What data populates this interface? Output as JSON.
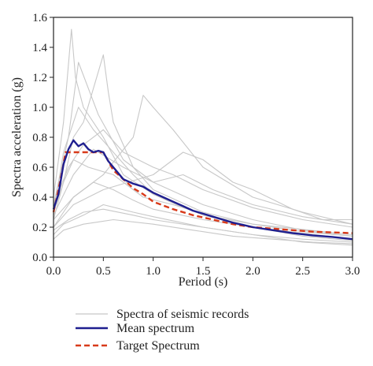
{
  "chart_data": {
    "type": "line",
    "xlabel": "Period (s)",
    "ylabel": "Spectra acceleration (g)",
    "xlim": [
      0,
      3.0
    ],
    "ylim": [
      0,
      1.6
    ],
    "xticks": [
      "0.0",
      "0.5",
      "1.0",
      "1.5",
      "2.0",
      "2.5",
      "3.0"
    ],
    "yticks": [
      "0.0",
      "0.2",
      "0.4",
      "0.6",
      "0.8",
      "1.0",
      "1.2",
      "1.4",
      "1.6"
    ],
    "grid": false,
    "legend_position": "bottom-left",
    "legend": [
      {
        "label": "Spectra of seismic records",
        "style": "solid-thin",
        "color": "#c8c8c8"
      },
      {
        "label": "Mean spectrum",
        "style": "solid-thick",
        "color": "#1f1f8f"
      },
      {
        "label": "Target Spectrum",
        "style": "dashed",
        "color": "#d83a1a"
      }
    ],
    "series": [
      {
        "name": "Mean spectrum",
        "color": "#1f1f8f",
        "x": [
          0.0,
          0.05,
          0.1,
          0.15,
          0.2,
          0.25,
          0.3,
          0.35,
          0.4,
          0.45,
          0.5,
          0.55,
          0.6,
          0.7,
          0.8,
          0.9,
          1.0,
          1.1,
          1.2,
          1.3,
          1.4,
          1.5,
          1.6,
          1.7,
          1.8,
          1.9,
          2.0,
          2.2,
          2.4,
          2.6,
          2.8,
          3.0
        ],
        "y": [
          0.32,
          0.42,
          0.62,
          0.72,
          0.78,
          0.74,
          0.76,
          0.72,
          0.7,
          0.71,
          0.7,
          0.64,
          0.6,
          0.52,
          0.49,
          0.47,
          0.43,
          0.4,
          0.37,
          0.34,
          0.31,
          0.29,
          0.27,
          0.25,
          0.23,
          0.215,
          0.2,
          0.18,
          0.16,
          0.145,
          0.135,
          0.12
        ]
      },
      {
        "name": "Target Spectrum",
        "color": "#d83a1a",
        "x": [
          0.0,
          0.05,
          0.1,
          0.12,
          0.2,
          0.3,
          0.4,
          0.5,
          0.6,
          0.7,
          0.8,
          0.9,
          1.0,
          1.2,
          1.4,
          1.6,
          1.8,
          2.0,
          2.2,
          2.4,
          2.6,
          2.8,
          3.0
        ],
        "y": [
          0.3,
          0.45,
          0.62,
          0.7,
          0.7,
          0.7,
          0.7,
          0.7,
          0.58,
          0.52,
          0.46,
          0.42,
          0.37,
          0.32,
          0.28,
          0.25,
          0.22,
          0.2,
          0.19,
          0.18,
          0.17,
          0.165,
          0.16
        ]
      },
      {
        "color": "#c8c8c8",
        "x": [
          0.0,
          0.1,
          0.18,
          0.22,
          0.3,
          0.5,
          0.7,
          1.0,
          1.5,
          2.0,
          2.5,
          3.0
        ],
        "y": [
          0.4,
          0.9,
          1.52,
          1.2,
          1.0,
          0.8,
          0.55,
          0.42,
          0.28,
          0.2,
          0.15,
          0.12
        ]
      },
      {
        "color": "#c8c8c8",
        "x": [
          0.0,
          0.1,
          0.2,
          0.3,
          0.5,
          0.55,
          0.6,
          0.8,
          1.0,
          1.5,
          2.0,
          3.0
        ],
        "y": [
          0.3,
          0.5,
          0.8,
          0.9,
          1.35,
          1.1,
          0.9,
          0.6,
          0.45,
          0.3,
          0.22,
          0.15
        ]
      },
      {
        "color": "#c8c8c8",
        "x": [
          0.0,
          0.2,
          0.5,
          0.8,
          0.9,
          1.0,
          1.2,
          1.5,
          2.0,
          2.5,
          3.0
        ],
        "y": [
          0.25,
          0.4,
          0.55,
          0.8,
          1.08,
          1.0,
          0.85,
          0.6,
          0.4,
          0.3,
          0.22
        ]
      },
      {
        "color": "#c8c8c8",
        "x": [
          0.0,
          0.2,
          0.5,
          1.0,
          1.3,
          1.5,
          1.8,
          2.0,
          2.4,
          2.7,
          3.0
        ],
        "y": [
          0.2,
          0.35,
          0.45,
          0.55,
          0.7,
          0.65,
          0.5,
          0.45,
          0.32,
          0.25,
          0.25
        ]
      },
      {
        "color": "#c8c8c8",
        "x": [
          0.0,
          0.1,
          0.25,
          0.4,
          0.6,
          0.8,
          1.0,
          1.3,
          1.6,
          2.0,
          2.5,
          3.0
        ],
        "y": [
          0.3,
          0.7,
          1.0,
          0.85,
          0.7,
          0.55,
          0.42,
          0.33,
          0.27,
          0.2,
          0.14,
          0.11
        ]
      },
      {
        "color": "#c8c8c8",
        "x": [
          0.0,
          0.1,
          0.2,
          0.4,
          0.6,
          0.8,
          1.0,
          1.5,
          2.0,
          2.5,
          3.0
        ],
        "y": [
          0.2,
          0.3,
          0.4,
          0.5,
          0.45,
          0.38,
          0.32,
          0.25,
          0.2,
          0.16,
          0.12
        ]
      },
      {
        "color": "#c8c8c8",
        "x": [
          0.0,
          0.15,
          0.3,
          0.5,
          0.8,
          1.0,
          1.5,
          2.0,
          2.5,
          3.0
        ],
        "y": [
          0.18,
          0.25,
          0.3,
          0.32,
          0.28,
          0.25,
          0.2,
          0.15,
          0.12,
          0.1
        ]
      },
      {
        "color": "#c8c8c8",
        "x": [
          0.0,
          0.15,
          0.3,
          0.5,
          0.7,
          1.0,
          1.2,
          1.5,
          2.0,
          2.5,
          3.0
        ],
        "y": [
          0.35,
          0.6,
          0.75,
          0.85,
          0.7,
          0.6,
          0.55,
          0.45,
          0.33,
          0.25,
          0.2
        ]
      },
      {
        "color": "#c8c8c8",
        "x": [
          0.0,
          0.1,
          0.3,
          0.5,
          0.8,
          1.0,
          1.5,
          2.0,
          2.5,
          3.0
        ],
        "y": [
          0.15,
          0.22,
          0.28,
          0.35,
          0.3,
          0.27,
          0.2,
          0.15,
          0.1,
          0.08
        ]
      },
      {
        "color": "#c8c8c8",
        "x": [
          0.0,
          0.1,
          0.2,
          0.35,
          0.6,
          0.9,
          1.2,
          1.6,
          2.0,
          2.5,
          3.0
        ],
        "y": [
          0.25,
          0.5,
          0.65,
          0.6,
          0.55,
          0.4,
          0.35,
          0.27,
          0.22,
          0.17,
          0.14
        ]
      },
      {
        "color": "#c8c8c8",
        "x": [
          0.0,
          0.2,
          0.4,
          0.7,
          1.0,
          1.3,
          1.6,
          2.0,
          2.5,
          3.0
        ],
        "y": [
          0.28,
          0.55,
          0.72,
          0.6,
          0.5,
          0.55,
          0.45,
          0.35,
          0.27,
          0.22
        ]
      },
      {
        "color": "#c8c8c8",
        "x": [
          0.0,
          0.1,
          0.3,
          0.6,
          1.0,
          1.4,
          1.8,
          2.2,
          2.6,
          3.0
        ],
        "y": [
          0.12,
          0.18,
          0.22,
          0.25,
          0.22,
          0.18,
          0.14,
          0.12,
          0.1,
          0.09
        ]
      },
      {
        "color": "#c8c8c8",
        "x": [
          0.0,
          0.15,
          0.25,
          0.45,
          0.7,
          1.0,
          1.5,
          2.0,
          2.5,
          3.0
        ],
        "y": [
          0.35,
          0.8,
          1.3,
          0.95,
          0.65,
          0.5,
          0.35,
          0.25,
          0.18,
          0.14
        ]
      }
    ]
  }
}
